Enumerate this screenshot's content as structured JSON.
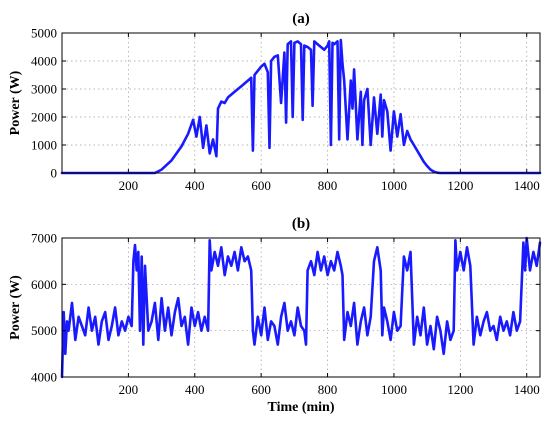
{
  "colors": {
    "series": "#1a1aff",
    "axis": "#000000",
    "grid": "#9a9a9a"
  },
  "chart_data": [
    {
      "type": "line",
      "title": "(a)",
      "xlabel": "",
      "ylabel": "Power (W)",
      "xlim": [
        0,
        1440
      ],
      "ylim": [
        0,
        5000
      ],
      "grid": true,
      "x_ticks": [
        200,
        400,
        600,
        800,
        1000,
        1200,
        1400
      ],
      "y_ticks": [
        0,
        1000,
        2000,
        3000,
        4000,
        5000
      ],
      "series": [
        {
          "x": [
            0,
            100,
            200,
            280,
            300,
            330,
            360,
            380,
            395,
            405,
            415,
            425,
            435,
            445,
            455,
            465,
            470,
            480,
            490,
            500,
            520,
            540,
            560,
            570,
            575,
            580,
            590,
            600,
            610,
            620,
            625,
            630,
            640,
            650,
            660,
            670,
            675,
            680,
            690,
            695,
            700,
            710,
            720,
            725,
            730,
            740,
            750,
            755,
            760,
            770,
            780,
            790,
            800,
            805,
            810,
            815,
            820,
            830,
            835,
            840,
            845,
            850,
            860,
            870,
            875,
            880,
            890,
            900,
            905,
            910,
            920,
            930,
            940,
            950,
            960,
            965,
            970,
            980,
            990,
            1000,
            1010,
            1020,
            1030,
            1040,
            1050,
            1060,
            1070,
            1080,
            1090,
            1100,
            1110,
            1120,
            1130,
            1140,
            1150,
            1200,
            1300,
            1440
          ],
          "y": [
            0,
            0,
            0,
            0,
            120,
            450,
            950,
            1400,
            1900,
            1300,
            2000,
            900,
            1700,
            700,
            1200,
            600,
            2300,
            2550,
            2500,
            2700,
            2900,
            3100,
            3300,
            3400,
            800,
            3500,
            3650,
            3800,
            3900,
            3600,
            900,
            4000,
            4150,
            4200,
            2500,
            4300,
            1800,
            4600,
            4700,
            2000,
            4650,
            4700,
            4600,
            1900,
            4550,
            4500,
            4400,
            2400,
            4700,
            4600,
            4500,
            4400,
            4550,
            4700,
            1000,
            4650,
            4600,
            4700,
            1200,
            4750,
            3900,
            3300,
            1200,
            3300,
            2300,
            3700,
            1200,
            2900,
            1000,
            2600,
            3000,
            1000,
            2700,
            1400,
            2800,
            1300,
            2600,
            2200,
            800,
            2200,
            1300,
            2100,
            1000,
            1500,
            1200,
            1000,
            800,
            600,
            400,
            250,
            120,
            50,
            10,
            0,
            0,
            0,
            0,
            0
          ]
        }
      ]
    },
    {
      "type": "line",
      "title": "(b)",
      "xlabel": "Time (min)",
      "ylabel": "Power (W)",
      "xlim": [
        0,
        1440
      ],
      "ylim": [
        4000,
        7000
      ],
      "grid": true,
      "x_ticks": [
        200,
        400,
        600,
        800,
        1000,
        1200,
        1400
      ],
      "y_ticks": [
        4000,
        5000,
        6000,
        7000
      ],
      "series": [
        {
          "x": [
            0,
            5,
            10,
            15,
            20,
            30,
            40,
            50,
            60,
            70,
            80,
            90,
            100,
            110,
            120,
            130,
            140,
            150,
            160,
            170,
            180,
            190,
            200,
            210,
            215,
            220,
            225,
            230,
            235,
            240,
            245,
            250,
            260,
            270,
            280,
            290,
            300,
            310,
            320,
            330,
            340,
            350,
            360,
            370,
            380,
            390,
            400,
            410,
            420,
            430,
            440,
            445,
            450,
            460,
            470,
            480,
            490,
            500,
            510,
            520,
            530,
            540,
            550,
            560,
            570,
            575,
            580,
            590,
            600,
            610,
            620,
            630,
            640,
            650,
            660,
            670,
            680,
            690,
            700,
            710,
            720,
            730,
            735,
            740,
            750,
            760,
            770,
            780,
            790,
            800,
            810,
            820,
            830,
            840,
            845,
            850,
            860,
            870,
            880,
            890,
            900,
            910,
            920,
            930,
            940,
            950,
            960,
            965,
            970,
            980,
            990,
            1000,
            1010,
            1020,
            1030,
            1040,
            1050,
            1060,
            1070,
            1080,
            1090,
            1100,
            1110,
            1120,
            1130,
            1140,
            1150,
            1160,
            1170,
            1180,
            1185,
            1190,
            1200,
            1210,
            1220,
            1230,
            1240,
            1250,
            1260,
            1270,
            1280,
            1290,
            1300,
            1310,
            1320,
            1330,
            1340,
            1350,
            1360,
            1370,
            1380,
            1390,
            1395,
            1400,
            1410,
            1420,
            1430,
            1440
          ],
          "y": [
            4000,
            5400,
            4500,
            5200,
            5000,
            5600,
            4800,
            5300,
            5100,
            4900,
            5500,
            5000,
            5300,
            4700,
            5200,
            5400,
            4800,
            5100,
            5500,
            4900,
            5200,
            5000,
            5300,
            5100,
            6500,
            6850,
            6300,
            6700,
            5000,
            6600,
            4700,
            6400,
            5000,
            5200,
            5600,
            4800,
            5700,
            5000,
            5500,
            4900,
            5400,
            5700,
            5100,
            5300,
            4700,
            5500,
            5100,
            5400,
            5000,
            5300,
            5000,
            6950,
            6300,
            6700,
            6400,
            6800,
            6200,
            6600,
            6400,
            6700,
            6300,
            6800,
            6500,
            6600,
            6300,
            5000,
            4700,
            5300,
            4900,
            5500,
            4800,
            5200,
            5100,
            4700,
            5300,
            5600,
            5000,
            5200,
            4900,
            5500,
            5100,
            5000,
            4700,
            6300,
            6500,
            6200,
            6700,
            6300,
            6600,
            6200,
            6500,
            6300,
            6700,
            6400,
            6200,
            4800,
            5400,
            5100,
            5600,
            4700,
            5200,
            5500,
            4900,
            5300,
            6500,
            6800,
            6300,
            4900,
            5500,
            5200,
            4800,
            5400,
            5000,
            5100,
            6600,
            6300,
            6700,
            4700,
            5300,
            4900,
            5500,
            4700,
            5100,
            4600,
            5300,
            5000,
            4500,
            5200,
            4800,
            5000,
            6950,
            6300,
            6700,
            6300,
            6800,
            6400,
            4700,
            5300,
            4900,
            5200,
            5400,
            5000,
            5100,
            4800,
            5300,
            5000,
            5200,
            4900,
            5400,
            5000,
            5200,
            6900,
            6300,
            7000,
            6300,
            6700,
            6400,
            6900
          ]
        }
      ]
    }
  ]
}
